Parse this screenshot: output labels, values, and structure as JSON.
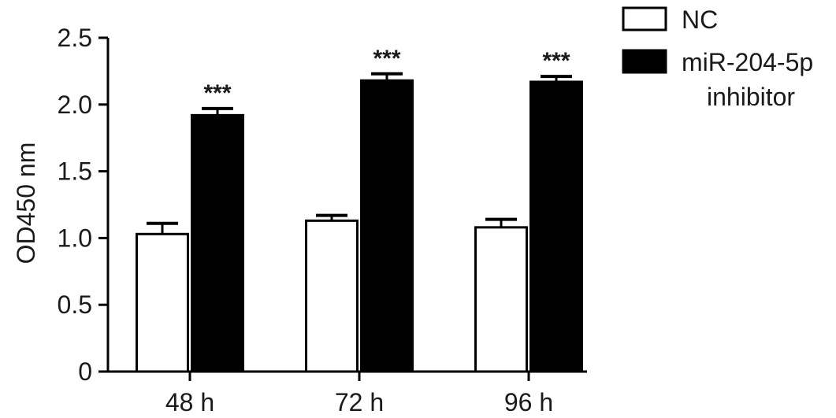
{
  "chart_data": {
    "type": "bar",
    "title": "",
    "xlabel": "",
    "ylabel": "OD450 nm",
    "ylim": [
      0,
      2.5
    ],
    "yticks": [
      "0",
      "0.5",
      "1.0",
      "1.5",
      "2.0",
      "2.5"
    ],
    "categories": [
      "48 h",
      "72 h",
      "96 h"
    ],
    "series": [
      {
        "name": "NC",
        "values": [
          1.03,
          1.13,
          1.08
        ],
        "errors": [
          0.08,
          0.04,
          0.06
        ],
        "fill": "#ffffff",
        "stroke": "#000000"
      },
      {
        "name": "miR-204-5p inhibitor",
        "values": [
          1.92,
          2.18,
          2.17
        ],
        "errors": [
          0.05,
          0.05,
          0.04
        ],
        "fill": "#000000",
        "stroke": "#000000"
      }
    ],
    "annotations": [
      "***",
      "***",
      "***"
    ],
    "legend": {
      "position": "top-right",
      "entries": [
        {
          "lines": [
            "NC"
          ]
        },
        {
          "lines": [
            "miR-204-5p",
            "inhibitor"
          ]
        }
      ]
    },
    "grid": false
  }
}
